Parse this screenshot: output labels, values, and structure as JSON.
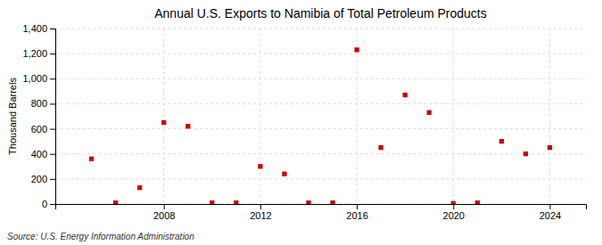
{
  "chart_data": {
    "type": "scatter",
    "title": "Annual U.S. Exports to Namibia of Total Petroleum Products",
    "y_label": "Thousand Barrels",
    "source": "Source: U.S. Energy Information Administration",
    "x": [
      2005,
      2006,
      2007,
      2008,
      2009,
      2010,
      2011,
      2012,
      2013,
      2014,
      2015,
      2016,
      2017,
      2018,
      2019,
      2020,
      2021,
      2022,
      2023,
      2024
    ],
    "values": [
      360,
      10,
      130,
      650,
      620,
      10,
      10,
      300,
      240,
      10,
      10,
      1230,
      450,
      870,
      730,
      5,
      10,
      500,
      400,
      450
    ],
    "color": "#cc0000",
    "marker": "square",
    "xlim": [
      2003.5,
      2025.5
    ],
    "xticks": [
      2008,
      2012,
      2016,
      2020,
      2024
    ],
    "ylim": [
      0,
      1400
    ],
    "yticks": [
      0,
      200,
      400,
      600,
      800,
      {
        "value": 1000,
        "label": "1,000"
      },
      {
        "value": 1200,
        "label": "1,200"
      },
      {
        "value": 1400,
        "label": "1,400"
      }
    ],
    "grid": true
  }
}
